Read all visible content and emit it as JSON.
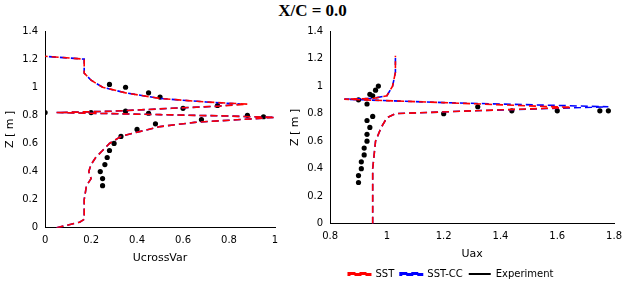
{
  "chart_data": [
    {
      "type": "line",
      "title": "X/C = 0.0",
      "x_label": "UcrossVar",
      "y_label": "Z [ m ]",
      "xlim": [
        0,
        1
      ],
      "xticks": [
        0,
        0.2,
        0.4,
        0.6,
        0.8,
        1
      ],
      "ylim": [
        0,
        1.4
      ],
      "yticks": [
        0,
        0.2,
        0.4,
        0.6,
        0.8,
        1,
        1.2,
        1.4
      ],
      "grid": false,
      "series": [
        {
          "name": "SST",
          "color": "#ff0000",
          "line_style": "dashed",
          "marker": "none",
          "x": [
            0.05,
            0.1,
            0.15,
            0.17,
            0.17,
            0.17,
            0.18,
            0.2,
            0.19,
            0.2,
            0.22,
            0.25,
            0.28,
            0.33,
            0.4,
            0.5,
            0.65,
            0.85,
            1.0,
            0.8,
            0.5,
            0.2,
            0.05,
            0.3,
            0.55,
            0.75,
            0.88,
            0.7,
            0.5,
            0.35,
            0.25,
            0.2,
            0.17,
            0.17,
            0.0
          ],
          "values": [
            0,
            0.02,
            0.04,
            0.06,
            0.1,
            0.2,
            0.3,
            0.35,
            0.4,
            0.45,
            0.5,
            0.55,
            0.6,
            0.65,
            0.68,
            0.72,
            0.75,
            0.77,
            0.785,
            0.795,
            0.805,
            0.815,
            0.82,
            0.83,
            0.85,
            0.865,
            0.88,
            0.895,
            0.92,
            0.96,
            1.0,
            1.05,
            1.1,
            1.2,
            1.22
          ]
        },
        {
          "name": "SST-CC",
          "color": "#0000ff",
          "line_style": "dashed",
          "marker": "none",
          "x": [
            0.05,
            0.1,
            0.15,
            0.17,
            0.17,
            0.17,
            0.18,
            0.2,
            0.19,
            0.2,
            0.22,
            0.25,
            0.28,
            0.33,
            0.4,
            0.5,
            0.65,
            0.85,
            1.0,
            0.8,
            0.5,
            0.2,
            0.05,
            0.3,
            0.55,
            0.75,
            0.85,
            0.7,
            0.5,
            0.35,
            0.25,
            0.2,
            0.17,
            0.17,
            0.0
          ],
          "values": [
            0,
            0.02,
            0.04,
            0.06,
            0.1,
            0.2,
            0.3,
            0.35,
            0.4,
            0.45,
            0.5,
            0.55,
            0.6,
            0.65,
            0.68,
            0.72,
            0.75,
            0.77,
            0.785,
            0.795,
            0.805,
            0.815,
            0.82,
            0.83,
            0.85,
            0.865,
            0.88,
            0.895,
            0.92,
            0.96,
            1.0,
            1.05,
            1.1,
            1.2,
            1.22
          ]
        },
        {
          "name": "Experiment",
          "color": "#000000",
          "marker": "circle",
          "x": [
            0.25,
            0.25,
            0.24,
            0.26,
            0.27,
            0.28,
            0.3,
            0.33,
            0.4,
            0.48,
            0.68,
            0.95,
            0.88,
            0.45,
            0.2,
            0.0,
            0.35,
            0.6,
            0.75,
            0.5,
            0.45,
            0.35,
            0.28
          ],
          "values": [
            0.3,
            0.35,
            0.4,
            0.45,
            0.5,
            0.55,
            0.6,
            0.65,
            0.7,
            0.74,
            0.77,
            0.79,
            0.8,
            0.815,
            0.82,
            0.82,
            0.83,
            0.85,
            0.87,
            0.93,
            0.96,
            1.0,
            1.02
          ]
        }
      ]
    },
    {
      "type": "line",
      "x_label": "Uax",
      "y_label": "Z [ m ]",
      "xlim": [
        0.8,
        1.8
      ],
      "xticks": [
        0.8,
        1,
        1.2,
        1.4,
        1.6,
        1.8
      ],
      "ylim": [
        0,
        1.4
      ],
      "yticks": [
        0,
        0.2,
        0.4,
        0.6,
        0.8,
        1,
        1.2,
        1.4
      ],
      "grid": false,
      "legend": "bottom",
      "series": [
        {
          "name": "SST",
          "color": "#ff0000",
          "line_style": "dashed",
          "marker": "none",
          "x": [
            0.95,
            0.95,
            0.95,
            0.96,
            0.98,
            1.0,
            1.03,
            1.3,
            1.65,
            1.2,
            0.85,
            0.95,
            1.0,
            1.02,
            1.03,
            1.03
          ],
          "values": [
            0,
            0.2,
            0.4,
            0.6,
            0.7,
            0.77,
            0.8,
            0.82,
            0.845,
            0.88,
            0.905,
            0.91,
            0.93,
            1.0,
            1.1,
            1.22
          ]
        },
        {
          "name": "SST-CC",
          "color": "#0000ff",
          "line_style": "dashed",
          "marker": "none",
          "x": [
            0.95,
            0.95,
            0.95,
            0.96,
            0.98,
            1.0,
            1.03,
            1.3,
            1.78,
            1.2,
            0.85,
            0.95,
            1.0,
            1.02,
            1.03,
            1.03
          ],
          "values": [
            0,
            0.2,
            0.4,
            0.6,
            0.7,
            0.77,
            0.8,
            0.82,
            0.85,
            0.88,
            0.905,
            0.91,
            0.93,
            1.0,
            1.1,
            1.22
          ]
        },
        {
          "name": "Experiment",
          "color": "#000000",
          "marker": "circle",
          "x": [
            0.9,
            0.9,
            0.91,
            0.91,
            0.92,
            0.92,
            0.93,
            0.93,
            0.94,
            0.93,
            0.95,
            1.2,
            1.44,
            1.6,
            1.75,
            1.78,
            1.32,
            0.93,
            0.9,
            0.95,
            0.94,
            0.96,
            0.97
          ],
          "values": [
            0.3,
            0.35,
            0.4,
            0.45,
            0.5,
            0.55,
            0.6,
            0.65,
            0.7,
            0.75,
            0.78,
            0.8,
            0.82,
            0.82,
            0.82,
            0.82,
            0.85,
            0.87,
            0.9,
            0.93,
            0.94,
            0.97,
            1.0
          ]
        }
      ]
    }
  ]
}
